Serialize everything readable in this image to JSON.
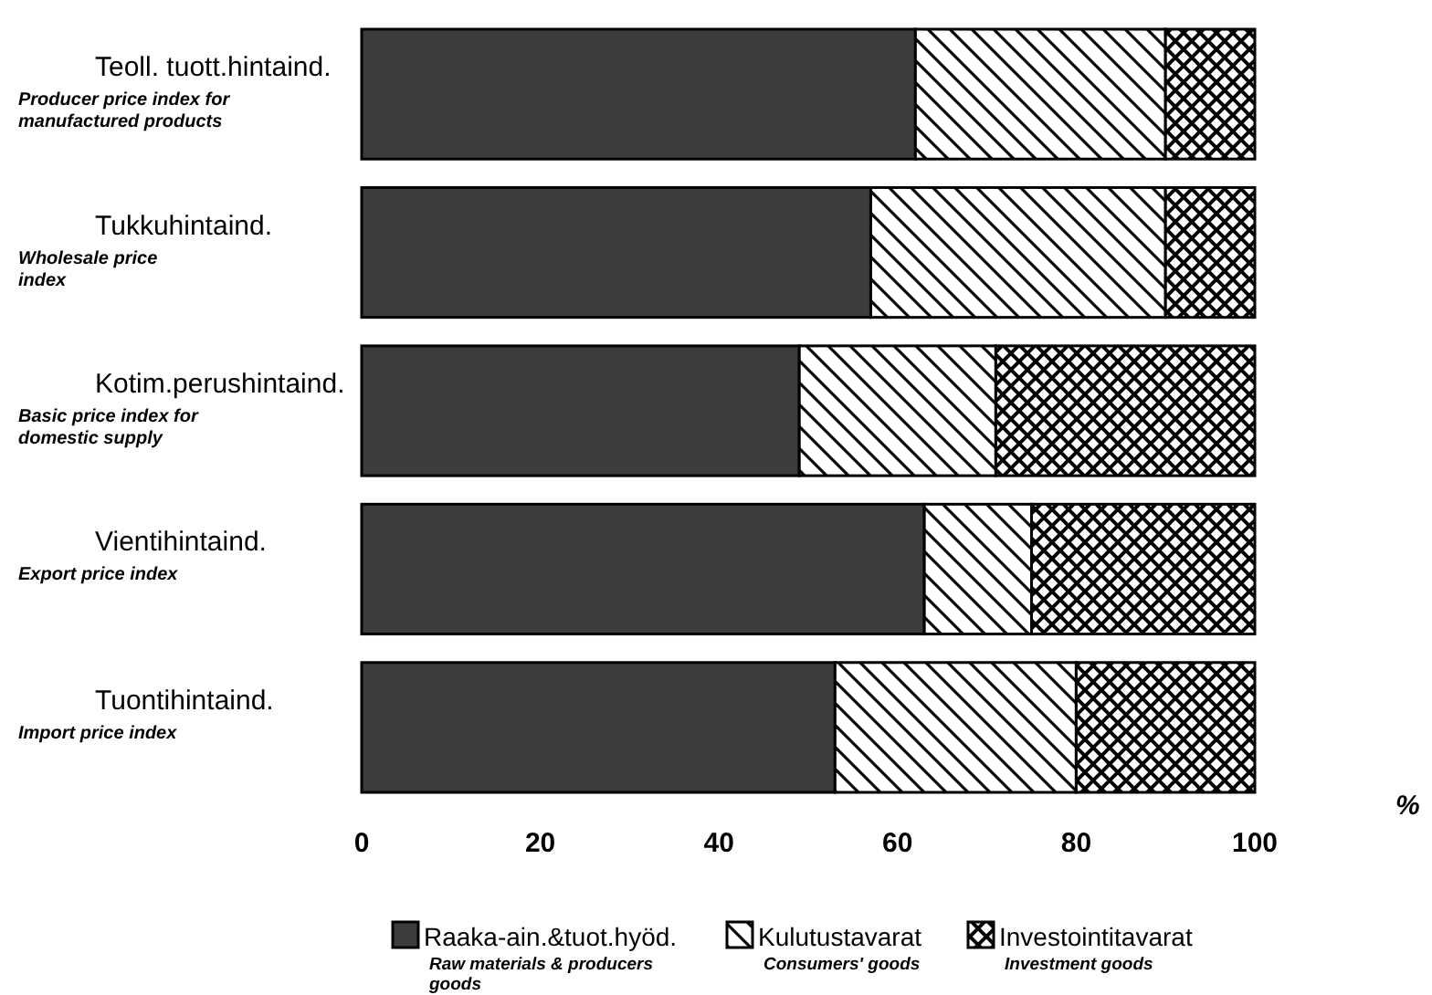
{
  "chart_data": {
    "type": "bar",
    "orientation": "horizontal",
    "stacked": true,
    "categories": [
      "Teoll. tuott.hintaind.\nProducer price index for\nmanufactured products",
      "Tukkuhintaind.\nWholesale price\nindex",
      "Kotim.perushintaind.\nBasic price index for\ndomestic supply",
      "Vientihintaind.\nExport price index",
      "Tuontihintaind.\nImport price index"
    ],
    "series": [
      {
        "name": "Raaka-ain.&tuot.hyöd.\nRaw materials & producers\ngoods",
        "color": "#3c3c3c",
        "values": [
          62,
          57,
          49,
          63,
          53
        ]
      },
      {
        "name": "Kulutustavarat\nConsumers' goods",
        "color": "#000000",
        "values": [
          28,
          33,
          22,
          12,
          27
        ]
      },
      {
        "name": "Investointitavarat\nInvestment goods",
        "color": "#000000",
        "values": [
          10,
          10,
          29,
          25,
          20
        ]
      }
    ],
    "xlim": [
      0,
      100
    ],
    "xticks": [
      0,
      20,
      40,
      60,
      80,
      100
    ],
    "xlabel": "%",
    "legend": "bottom",
    "grid": false
  }
}
